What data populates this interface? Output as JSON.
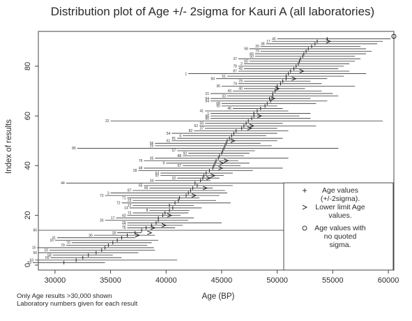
{
  "chart_data": {
    "type": "scatter",
    "title": "Distribution plot of Age +/- 2sigma for Kauri A (all laboratories)",
    "xlabel": "Age (BP)",
    "ylabel": "Index of results",
    "xlim": [
      28500,
      60500
    ],
    "ylim": [
      -2,
      94
    ],
    "x_ticks": [
      "30000",
      "35000",
      "40000",
      "45000",
      "50000",
      "55000",
      "60000"
    ],
    "y_ticks": [
      "0",
      "20",
      "40",
      "60",
      "80"
    ],
    "notes": [
      "Only Age results >30,000 shown",
      "Laboratory numbers given for each result"
    ],
    "legend": {
      "position": "bottom-right",
      "entries": [
        {
          "symbol": "+",
          "text": "Age values\n(+/-2sigma)."
        },
        {
          "symbol": ">",
          "text": "Lower limit Age\nvalues."
        },
        {
          "symbol": "o",
          "text": "Age values with\nno quoted\nsigma."
        }
      ]
    },
    "series": [
      {
        "values": [
          [
            1,
            30800,
            28000,
            34500,
            "63"
          ],
          [
            2,
            31900,
            28200,
            41000,
            "53"
          ],
          [
            3,
            32500,
            29600,
            36000,
            "69"
          ],
          [
            4,
            33000,
            29800,
            35200,
            "58"
          ],
          [
            5,
            33700,
            28500,
            37500,
            "56"
          ],
          [
            6,
            34200,
            29500,
            39000,
            "10"
          ],
          [
            7,
            34500,
            28400,
            38900,
            "15"
          ],
          [
            8,
            34800,
            31000,
            38300,
            "79"
          ],
          [
            9,
            35200,
            31500,
            38700,
            "70"
          ],
          [
            10,
            35600,
            30000,
            39300,
            "16"
          ],
          [
            11,
            36000,
            30200,
            37200,
            "31"
          ],
          [
            12,
            36500,
            33500,
            39000,
            "30"
          ],
          [
            13,
            37200,
            35600,
            37800,
            "18"
          ],
          [
            14,
            37800,
            28500,
            57500,
            "66"
          ],
          [
            15,
            38200,
            36500,
            40800,
            "76"
          ],
          [
            16,
            38700,
            36500,
            41500,
            "77"
          ],
          [
            17,
            39100,
            36500,
            45000,
            "29"
          ],
          [
            18,
            39300,
            34500,
            42000,
            "26"
          ],
          [
            19,
            39300,
            35500,
            42500,
            "17"
          ],
          [
            20,
            39700,
            36500,
            41300,
            "43"
          ],
          [
            21,
            39900,
            37000,
            42000,
            "72"
          ],
          [
            22,
            40300,
            38500,
            42100,
            "8"
          ],
          [
            23,
            40600,
            36700,
            43200,
            "14"
          ],
          [
            24,
            40300,
            37000,
            42500,
            "12"
          ],
          [
            25,
            40800,
            36000,
            45800,
            "72"
          ],
          [
            26,
            41100,
            37000,
            44500,
            "23"
          ],
          [
            27,
            41200,
            36500,
            43000,
            "71"
          ],
          [
            28,
            41800,
            34500,
            44800,
            "72"
          ],
          [
            29,
            42000,
            35000,
            45500,
            "3"
          ],
          [
            30,
            42200,
            37000,
            45300,
            "87"
          ],
          [
            31,
            42400,
            38500,
            44200,
            "66"
          ],
          [
            32,
            42800,
            38000,
            46000,
            "65"
          ],
          [
            33,
            42600,
            31000,
            57000,
            "44"
          ],
          [
            34,
            43100,
            39000,
            44000,
            "34"
          ],
          [
            35,
            43300,
            41000,
            44800,
            "32"
          ],
          [
            36,
            43400,
            39500,
            45200,
            "97"
          ],
          [
            37,
            43600,
            39500,
            46000,
            "62"
          ],
          [
            38,
            43900,
            37500,
            47800,
            "28"
          ],
          [
            39,
            44200,
            38000,
            50500,
            "48"
          ],
          [
            40,
            44300,
            41500,
            46700,
            "67"
          ],
          [
            41,
            44400,
            40000,
            47500,
            "9"
          ],
          [
            42,
            44500,
            38000,
            46500,
            "76"
          ],
          [
            43,
            44700,
            39000,
            51000,
            "35"
          ],
          [
            44,
            44800,
            41500,
            47000,
            "88"
          ],
          [
            45,
            45000,
            42000,
            47500,
            "92"
          ],
          [
            46,
            45100,
            41000,
            48000,
            "57"
          ],
          [
            47,
            45200,
            32000,
            55500,
            "85"
          ],
          [
            48,
            45300,
            39000,
            49500,
            "25"
          ],
          [
            49,
            45400,
            39000,
            48500,
            "56"
          ],
          [
            50,
            45500,
            40500,
            50000,
            "61"
          ],
          [
            51,
            45700,
            41000,
            50500,
            "81"
          ],
          [
            52,
            45900,
            41500,
            49000,
            "6"
          ],
          [
            53,
            46100,
            40500,
            50000,
            "54"
          ],
          [
            54,
            46300,
            42500,
            51000,
            "82"
          ],
          [
            55,
            46800,
            43500,
            50000,
            "37"
          ],
          [
            56,
            47000,
            43000,
            53500,
            "62"
          ],
          [
            57,
            47200,
            43500,
            50500,
            "59"
          ],
          [
            58,
            47400,
            35000,
            59500,
            "22"
          ],
          [
            59,
            47700,
            44000,
            53000,
            "80"
          ],
          [
            60,
            47900,
            44000,
            52000,
            "66"
          ],
          [
            61,
            47900,
            44000,
            53000,
            "1"
          ],
          [
            62,
            48200,
            43500,
            51000,
            "41"
          ],
          [
            63,
            48500,
            46000,
            50500,
            "46"
          ],
          [
            64,
            48900,
            45000,
            50000,
            "55"
          ],
          [
            65,
            49100,
            45000,
            53500,
            "68"
          ],
          [
            66,
            49400,
            44000,
            54500,
            "64"
          ],
          [
            67,
            49300,
            44000,
            53000,
            "84"
          ],
          [
            68,
            49600,
            45500,
            55500,
            "33"
          ],
          [
            69,
            49600,
            44000,
            55000,
            "21"
          ],
          [
            70,
            49800,
            46000,
            54000,
            "43"
          ],
          [
            71,
            50000,
            47000,
            52500,
            "40"
          ],
          [
            72,
            50000,
            45000,
            57000,
            "36"
          ],
          [
            73,
            50300,
            46500,
            54000,
            "74"
          ],
          [
            74,
            50500,
            47000,
            53000,
            "79"
          ],
          [
            75,
            50800,
            44500,
            54500,
            "84"
          ],
          [
            76,
            50800,
            45500,
            56000,
            "51"
          ],
          [
            77,
            51000,
            42000,
            58000,
            "1"
          ],
          [
            78,
            51200,
            46500,
            56500,
            "87"
          ],
          [
            79,
            51500,
            47000,
            55500,
            "43"
          ],
          [
            80,
            51700,
            46500,
            56000,
            "78"
          ],
          [
            81,
            51900,
            47000,
            56500,
            "2"
          ],
          [
            82,
            52000,
            47500,
            57000,
            "60"
          ],
          [
            83,
            52100,
            46500,
            57500,
            "37"
          ],
          [
            84,
            52300,
            48000,
            57000,
            "50"
          ],
          [
            85,
            52400,
            48000,
            58000,
            "83"
          ],
          [
            86,
            52600,
            48500,
            58500,
            "73"
          ],
          [
            87,
            52800,
            47500,
            58000,
            "58"
          ],
          [
            88,
            53100,
            48500,
            57500,
            "20"
          ],
          [
            89,
            53400,
            49000,
            59000,
            "38"
          ],
          [
            90,
            53600,
            49500,
            59500,
            "17"
          ],
          [
            91,
            54500,
            50000,
            60200,
            "45"
          ]
        ]
      }
    ],
    "lower_limits": [
      {
        "index": 12,
        "age": 37400
      },
      {
        "index": 13,
        "age": 38500
      },
      {
        "index": 15,
        "age": 38800
      },
      {
        "index": 16,
        "age": 39800
      },
      {
        "index": 20,
        "age": 40300
      },
      {
        "index": 28,
        "age": 42500
      },
      {
        "index": 31,
        "age": 43500
      },
      {
        "index": 35,
        "age": 43800
      },
      {
        "index": 36,
        "age": 44200
      },
      {
        "index": 39,
        "age": 44900
      },
      {
        "index": 41,
        "age": 45000
      },
      {
        "index": 42,
        "age": 45400
      },
      {
        "index": 50,
        "age": 46000
      },
      {
        "index": 55,
        "age": 47500
      },
      {
        "index": 56,
        "age": 47700
      },
      {
        "index": 60,
        "age": 48400
      },
      {
        "index": 67,
        "age": 49600
      },
      {
        "index": 71,
        "age": 50000
      },
      {
        "index": 75,
        "age": 51500
      },
      {
        "index": 78,
        "age": 52200
      },
      {
        "index": 90,
        "age": 54600
      }
    ],
    "no_sigma": [
      {
        "index": 92,
        "age": 60500
      }
    ]
  }
}
